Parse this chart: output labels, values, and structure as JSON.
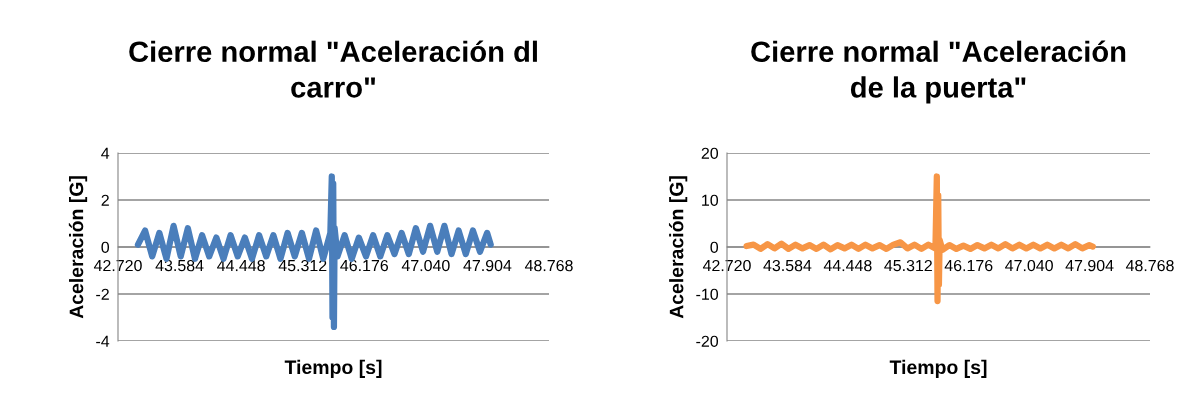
{
  "chart_data": [
    {
      "type": "line",
      "title": "Cierre normal \"Aceleración dl\ncarro\"",
      "xlabel": "Tiempo [s]",
      "ylabel": "Aceleración [G]",
      "x": [
        43.0,
        43.1,
        43.2,
        43.3,
        43.4,
        43.5,
        43.6,
        43.7,
        43.8,
        43.9,
        44.0,
        44.1,
        44.2,
        44.3,
        44.4,
        44.5,
        44.6,
        44.7,
        44.8,
        44.9,
        45.0,
        45.1,
        45.2,
        45.3,
        45.4,
        45.5,
        45.6,
        45.7,
        45.72,
        45.73,
        45.74,
        45.75,
        45.76,
        45.8,
        45.9,
        46.0,
        46.1,
        46.2,
        46.3,
        46.4,
        46.5,
        46.6,
        46.7,
        46.8,
        46.9,
        47.0,
        47.1,
        47.2,
        47.3,
        47.4,
        47.5,
        47.6,
        47.7,
        47.8,
        47.9,
        47.95
      ],
      "series": [
        {
          "color": "#4a7ebb",
          "values": [
            0.1,
            0.7,
            -0.4,
            0.6,
            -0.5,
            0.9,
            -0.4,
            0.8,
            -0.5,
            0.5,
            -0.4,
            0.4,
            -0.5,
            0.5,
            -0.4,
            0.4,
            -0.5,
            0.5,
            -0.4,
            0.5,
            -0.5,
            0.6,
            -0.4,
            0.6,
            -0.5,
            0.7,
            -0.5,
            0.6,
            3.0,
            -3.0,
            2.7,
            -3.4,
            0.8,
            -0.4,
            0.5,
            -0.5,
            0.4,
            -0.4,
            0.5,
            -0.4,
            0.5,
            -0.3,
            0.6,
            -0.3,
            0.8,
            -0.2,
            0.9,
            -0.2,
            0.9,
            -0.3,
            0.7,
            -0.3,
            0.7,
            -0.2,
            0.6,
            0.1
          ]
        }
      ],
      "xlim": [
        42.72,
        48.768
      ],
      "xticks": [
        {
          "value": 42.72,
          "label": "42.720"
        },
        {
          "value": 43.584,
          "label": "43.584"
        },
        {
          "value": 44.448,
          "label": "44.448"
        },
        {
          "value": 45.312,
          "label": "45.312"
        },
        {
          "value": 46.176,
          "label": "46.176"
        },
        {
          "value": 47.04,
          "label": "47.040"
        },
        {
          "value": 47.904,
          "label": "47.904"
        },
        {
          "value": 48.768,
          "label": "48.768"
        }
      ],
      "ylim": [
        -4,
        4
      ],
      "yticks": [
        -4,
        -2,
        0,
        2,
        4
      ],
      "grid": "y",
      "marker": "none",
      "line_style": "solid"
    },
    {
      "type": "line",
      "title": "Cierre normal \"Aceleración\nde la puerta\"",
      "xlabel": "Tiempo [s]",
      "ylabel": "Aceleración [G]",
      "x": [
        43.0,
        43.1,
        43.2,
        43.3,
        43.4,
        43.5,
        43.6,
        43.7,
        43.8,
        43.9,
        44.0,
        44.1,
        44.2,
        44.3,
        44.4,
        44.5,
        44.6,
        44.7,
        44.8,
        44.9,
        45.0,
        45.1,
        45.2,
        45.3,
        45.4,
        45.5,
        45.6,
        45.7,
        45.72,
        45.73,
        45.74,
        45.75,
        45.76,
        45.8,
        45.9,
        46.0,
        46.1,
        46.2,
        46.3,
        46.4,
        46.5,
        46.6,
        46.7,
        46.8,
        46.9,
        47.0,
        47.1,
        47.2,
        47.3,
        47.4,
        47.5,
        47.6,
        47.7,
        47.8,
        47.9,
        47.95
      ],
      "series": [
        {
          "color": "#f79646",
          "values": [
            0.2,
            0.5,
            -0.4,
            0.6,
            -0.3,
            0.7,
            -0.4,
            0.5,
            -0.3,
            0.4,
            -0.4,
            0.5,
            -0.5,
            0.4,
            -0.3,
            0.5,
            -0.4,
            0.5,
            -0.3,
            0.4,
            -0.4,
            0.5,
            1.0,
            -0.3,
            0.5,
            -0.4,
            0.5,
            -0.3,
            15.0,
            -11.5,
            11.0,
            -8.0,
            1.5,
            -0.6,
            0.4,
            -0.4,
            0.3,
            -0.4,
            0.4,
            -0.3,
            0.5,
            -0.3,
            0.6,
            -0.3,
            0.5,
            -0.3,
            0.5,
            -0.3,
            0.5,
            -0.3,
            0.5,
            -0.3,
            0.6,
            -0.3,
            0.4,
            0.1
          ]
        }
      ],
      "xlim": [
        42.72,
        48.768
      ],
      "xticks": [
        {
          "value": 42.72,
          "label": "42.720"
        },
        {
          "value": 43.584,
          "label": "43.584"
        },
        {
          "value": 44.448,
          "label": "44.448"
        },
        {
          "value": 45.312,
          "label": "45.312"
        },
        {
          "value": 46.176,
          "label": "46.176"
        },
        {
          "value": 47.04,
          "label": "47.040"
        },
        {
          "value": 47.904,
          "label": "47.904"
        },
        {
          "value": 48.768,
          "label": "48.768"
        }
      ],
      "ylim": [
        -20,
        20
      ],
      "yticks": [
        -20,
        -10,
        0,
        10,
        20
      ],
      "grid": "y",
      "marker": "none",
      "line_style": "solid"
    }
  ]
}
